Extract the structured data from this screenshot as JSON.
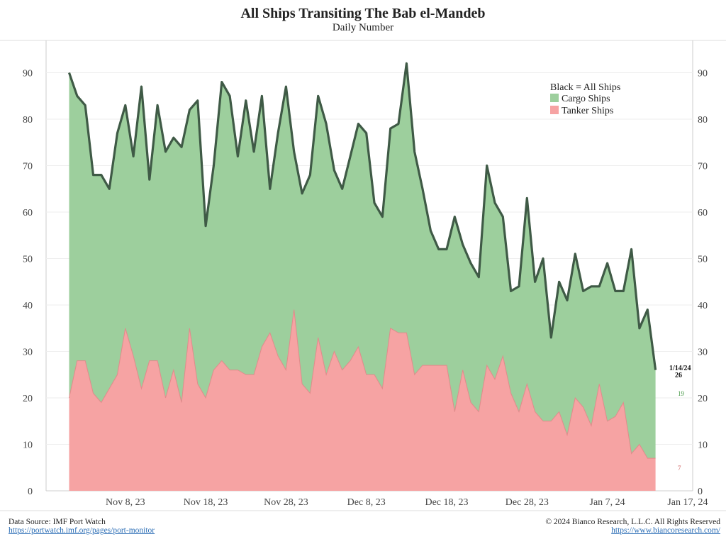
{
  "header": {
    "title": "All Ships Transiting The Bab el-Mandeb",
    "subtitle": "Daily Number"
  },
  "footer": {
    "source_label": "Data Source: IMF Port Watch",
    "source_url": "https://portwatch.imf.org/pages/port-monitor",
    "copyright": "© 2024 Bianco Research, L.L.C. All Rights Reserved",
    "site_url": "https://www.biancoresearch.com/"
  },
  "colors": {
    "cargo": "#9dcf9d",
    "tanker": "#f6a3a3",
    "total_line": "#3f5a46",
    "tanker_line": "#e08c8c"
  },
  "chart_data": {
    "type": "area",
    "title": "All Ships Transiting The Bab el-Mandeb",
    "subtitle": "Daily Number",
    "xlabel": "",
    "ylabel": "",
    "ylim": [
      0,
      95
    ],
    "yticks": [
      0,
      10,
      20,
      30,
      40,
      50,
      60,
      70,
      80,
      90
    ],
    "xticks": [
      {
        "label": "Nov 8, 23",
        "day": 7
      },
      {
        "label": "Nov 18, 23",
        "day": 17
      },
      {
        "label": "Nov 28, 23",
        "day": 27
      },
      {
        "label": "Dec 8, 23",
        "day": 37
      },
      {
        "label": "Dec 18, 23",
        "day": 47
      },
      {
        "label": "Dec 28, 23",
        "day": 57
      },
      {
        "label": "Jan 7, 24",
        "day": 67
      },
      {
        "label": "Jan 17, 24",
        "day": 77
      }
    ],
    "x_start": "Nov 1, 23",
    "x_range": [
      -1.5,
      78.5
    ],
    "legend": {
      "position": "top-right",
      "entries": [
        "Black = All Ships",
        "Cargo Ships",
        "Tanker Ships"
      ]
    },
    "series": [
      {
        "name": "All Ships",
        "values": [
          90,
          85,
          83,
          68,
          68,
          65,
          77,
          83,
          72,
          87,
          67,
          83,
          73,
          76,
          74,
          82,
          84,
          57,
          70,
          88,
          85,
          72,
          84,
          73,
          85,
          65,
          77,
          87,
          73,
          64,
          68,
          85,
          79,
          69,
          65,
          72,
          79,
          77,
          62,
          59,
          78,
          79,
          92,
          73,
          65,
          56,
          52,
          52,
          59,
          53,
          49,
          46,
          70,
          62,
          59,
          43,
          44,
          63,
          45,
          50,
          33,
          45,
          41,
          51,
          43,
          44,
          44,
          49,
          43,
          43,
          52,
          35,
          39,
          26
        ]
      },
      {
        "name": "Cargo Ships",
        "values": [
          70,
          57,
          55,
          47,
          48,
          46,
          52,
          48,
          43,
          65,
          39,
          55,
          53,
          50,
          55,
          63,
          61,
          37,
          44,
          60,
          59,
          46,
          59,
          48,
          54,
          34,
          43,
          61,
          50,
          41,
          47,
          52,
          54,
          44,
          39,
          44,
          48,
          52,
          37,
          37,
          43,
          45,
          58,
          48,
          38,
          29,
          25,
          25,
          42,
          27,
          30,
          29,
          43,
          38,
          30,
          22,
          27,
          34,
          28,
          35,
          18,
          28,
          29,
          31,
          25,
          30,
          21,
          34,
          28,
          24,
          33,
          27,
          29,
          19
        ]
      },
      {
        "name": "Tanker Ships",
        "values": [
          20,
          28,
          28,
          21,
          19,
          22,
          25,
          35,
          29,
          22,
          28,
          28,
          20,
          26,
          19,
          35,
          23,
          20,
          26,
          28,
          26,
          26,
          25,
          25,
          31,
          34,
          29,
          26,
          39,
          23,
          21,
          33,
          25,
          30,
          26,
          28,
          31,
          25,
          25,
          22,
          35,
          34,
          34,
          25,
          27,
          27,
          27,
          27,
          17,
          26,
          19,
          17,
          27,
          24,
          29,
          21,
          17,
          23,
          17,
          15,
          15,
          17,
          12,
          20,
          18,
          14,
          23,
          15,
          16,
          19,
          8,
          10,
          7,
          7
        ]
      }
    ],
    "annotations": [
      {
        "text": "1/14/24",
        "series": "All Ships"
      },
      {
        "text": "26",
        "series": "All Ships",
        "value": 26
      },
      {
        "text": "19",
        "series": "Cargo Ships",
        "value": 19
      },
      {
        "text": "7",
        "series": "Tanker Ships",
        "value": 7
      }
    ]
  }
}
